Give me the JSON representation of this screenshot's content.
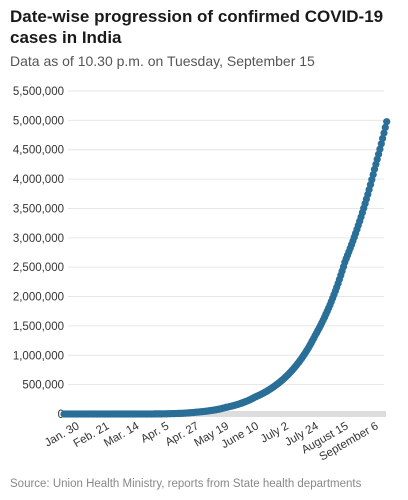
{
  "title": "Date-wise progression of confirmed COVID-19 cases in India",
  "subtitle": "Data as of 10.30 p.m. on Tuesday, September 15",
  "source": "Source: Union Health Ministry, reports from State health departments",
  "colors": {
    "series": "#2a6f97",
    "grid": "#e6e6e6",
    "axis": "#dddddd"
  },
  "chart_data": {
    "type": "scatter",
    "title": "Date-wise progression of confirmed COVID-19 cases in India",
    "subtitle": "Data as of 10.30 p.m. on Tuesday, September 15",
    "xlabel": "",
    "ylabel": "",
    "ylim": [
      0,
      5500000
    ],
    "grid": "horizontal",
    "yticks": [
      "0",
      "500,000",
      "1,000,000",
      "1,500,000",
      "2,000,000",
      "2,500,000",
      "3,000,000",
      "3,500,000",
      "4,000,000",
      "4,500,000",
      "5,000,000",
      "5,500,000"
    ],
    "xticks": [
      "Jan. 30",
      "Feb. 21",
      "Mar. 14",
      "Apr. 5",
      "Apr. 27",
      "May 19",
      "June 10",
      "July 2",
      "July 24",
      "August 15",
      "September 6"
    ],
    "series": [
      {
        "x": [
          "Jan. 30",
          "Feb. 21",
          "Mar. 14",
          "Apr. 5",
          "Apr. 27",
          "May 19",
          "June 10",
          "July 2",
          "July 24",
          "August 15",
          "September 6",
          "Sep. 15"
        ],
        "values": [
          1,
          3,
          100,
          4000,
          30000,
          110000,
          290000,
          625000,
          1340000,
          2600000,
          4200000,
          5020000
        ]
      }
    ]
  }
}
